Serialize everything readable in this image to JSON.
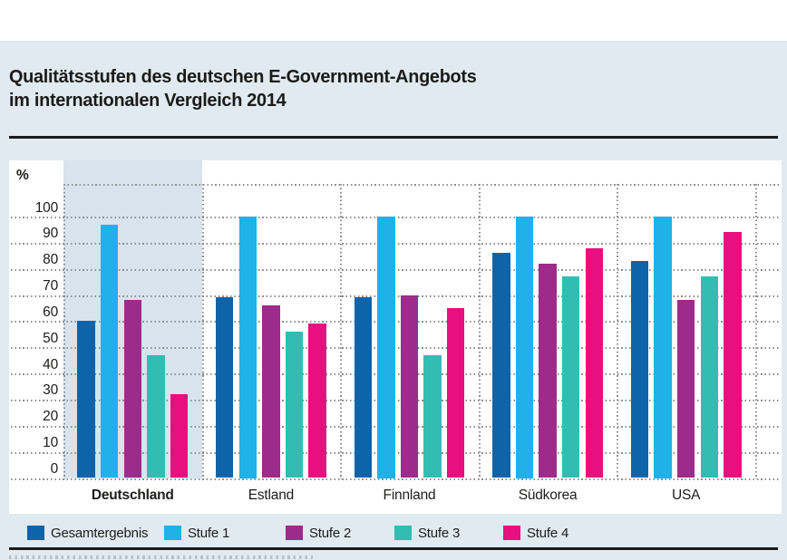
{
  "title": {
    "line1": "Qualitätsstufen des deutschen E-Government-Angebots",
    "line2": "im internationalen Vergleich 2014"
  },
  "chart_data": {
    "type": "bar",
    "title": "Qualitätsstufen des deutschen E-Government-Angebots im internationalen Vergleich 2014",
    "unit_label": "%",
    "categories": [
      "Deutschland",
      "Estland",
      "Finnland",
      "Südkorea",
      "USA"
    ],
    "highlighted_category": "Deutschland",
    "series": [
      {
        "name": "Gesamtergebnis",
        "color": "#0f63a9",
        "values": [
          60,
          69,
          69,
          86,
          83
        ]
      },
      {
        "name": "Stufe 1",
        "color": "#1fb1e8",
        "values": [
          97,
          100,
          100,
          100,
          100
        ]
      },
      {
        "name": "Stufe 2",
        "color": "#9d2b8b",
        "values": [
          68,
          66,
          70,
          82,
          68
        ]
      },
      {
        "name": "Stufe 3",
        "color": "#32bdb2",
        "values": [
          47,
          56,
          47,
          77,
          77
        ]
      },
      {
        "name": "Stufe 4",
        "color": "#e80f7e",
        "values": [
          32,
          59,
          65,
          88,
          94
        ]
      }
    ],
    "ylim": [
      0,
      100
    ],
    "yticks": [
      0,
      10,
      20,
      30,
      40,
      50,
      60,
      70,
      80,
      90,
      100
    ],
    "grid": "dotted horizontal gridlines every 10, dotted vertical group separators, highlighted band behind Deutschland",
    "legend_position": "bottom"
  },
  "colors": {
    "page_band": "#e0eaf0",
    "plot_background": "#ffffff",
    "highlight_band": "#d7e4ed",
    "grid": "#8f8f8f",
    "text": "#1d1d1b",
    "rule": "#1a1a1a"
  }
}
